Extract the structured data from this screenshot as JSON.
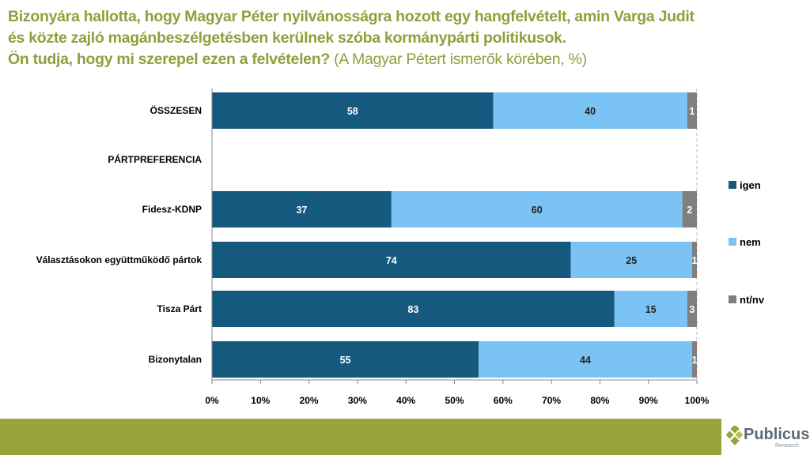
{
  "title": {
    "line1": "Bizonyára hallotta, hogy Magyar Péter nyilvánosságra hozott egy hangfelvételt, amin Varga Judit",
    "line2": "és közte zajló magánbeszélgetésben kerülnek szóba kormánypárti politikusok.",
    "line3": "Ön tudja, hogy mi szerepel ezen a felvételen?",
    "line3_sub": " (A Magyar Pétert ismerők körében, %)"
  },
  "logo": {
    "name": "Publicus",
    "sub": "Research"
  },
  "chart_data": {
    "type": "bar",
    "orientation": "horizontal",
    "stacked": true,
    "categories": [
      "ÖSSZESEN",
      "PÁRTPREFERENCIA",
      "Fidesz-KDNP",
      "Választásokon együttműködő pártok",
      "Tisza Párt",
      "Bizonytalan"
    ],
    "series": [
      {
        "name": "igen",
        "color": "#16597e",
        "values": [
          58,
          null,
          37,
          74,
          83,
          55
        ]
      },
      {
        "name": "nem",
        "color": "#7cc3f5",
        "values": [
          40,
          null,
          60,
          25,
          15,
          44
        ]
      },
      {
        "name": "nt/nv",
        "color": "#7f7f7f",
        "values": [
          1,
          null,
          2,
          1,
          3,
          1
        ]
      }
    ],
    "xlim": [
      0,
      100
    ],
    "xticks": [
      "0%",
      "10%",
      "20%",
      "30%",
      "40%",
      "50%",
      "60%",
      "70%",
      "80%",
      "90%",
      "100%"
    ],
    "legend": "right"
  }
}
